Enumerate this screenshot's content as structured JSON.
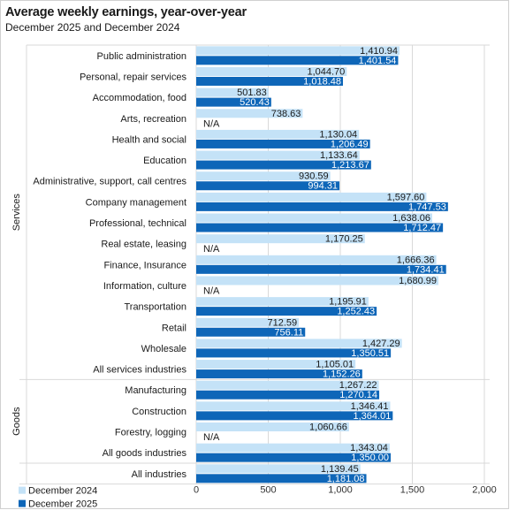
{
  "chart_data": {
    "type": "bar",
    "orientation": "horizontal",
    "title": "Average weekly earnings, year-over-year",
    "subtitle": "December  2025 and December  2024",
    "xlim": [
      0,
      2000
    ],
    "x_ticks": [
      "0",
      "500",
      "1,000",
      "1,500",
      "2,000"
    ],
    "x_tick_values": [
      0,
      500,
      1000,
      1500,
      2000
    ],
    "legend_position": "bottom-left",
    "colors": {
      "dec2024": "#c4e2f7",
      "dec2025": "#0e66b8",
      "grid": "#d9d9d9"
    },
    "groups": [
      {
        "name": "Services",
        "categories": [
          "Public administration",
          "Personal, repair services",
          "Accommodation, food",
          "Arts, recreation",
          "Health and social",
          "Education",
          "Administrative, support, call centres",
          "Company management",
          "Professional, technical",
          "Real estate, leasing",
          "Finance, Insurance",
          "Information, culture",
          "Transportation",
          "Retail",
          "Wholesale",
          "All services industries"
        ]
      },
      {
        "name": "Goods",
        "categories": [
          "Manufacturing",
          "Construction",
          "Forestry, logging",
          "All goods industries"
        ]
      },
      {
        "name": "",
        "categories": [
          "All industries"
        ]
      }
    ],
    "series": [
      {
        "name": "December 2024",
        "values": [
          1410.94,
          1044.7,
          501.83,
          738.63,
          1130.04,
          1133.64,
          930.59,
          1597.6,
          1638.06,
          1170.25,
          1666.36,
          1680.99,
          1195.91,
          712.59,
          1427.29,
          1105.01,
          1267.22,
          1346.41,
          1060.66,
          1343.04,
          1139.45
        ],
        "labels": [
          "1,410.94",
          "1,044.70",
          "501.83",
          "738.63",
          "1,130.04",
          "1,133.64",
          "930.59",
          "1,597.60",
          "1,638.06",
          "1,170.25",
          "1,666.36",
          "1,680.99",
          "1,195.91",
          "712.59",
          "1,427.29",
          "1,105.01",
          "1,267.22",
          "1,346.41",
          "1,060.66",
          "1,343.04",
          "1,139.45"
        ]
      },
      {
        "name": "December 2025",
        "values": [
          1401.54,
          1018.48,
          520.43,
          null,
          1206.49,
          1213.67,
          994.31,
          1747.53,
          1712.47,
          null,
          1734.41,
          null,
          1252.43,
          756.11,
          1350.51,
          1152.26,
          1270.14,
          1364.01,
          null,
          1350.0,
          1181.08
        ],
        "labels": [
          "1,401.54",
          "1,018.48",
          "520.43",
          "N/A",
          "1,206.49",
          "1,213.67",
          "994.31",
          "1,747.53",
          "1,712.47",
          "N/A",
          "1,734.41",
          "N/A",
          "1,252.43",
          "756.11",
          "1,350.51",
          "1,152.26",
          "1,270.14",
          "1,364.01",
          "N/A",
          "1,350.00",
          "1,181.08"
        ]
      }
    ]
  }
}
